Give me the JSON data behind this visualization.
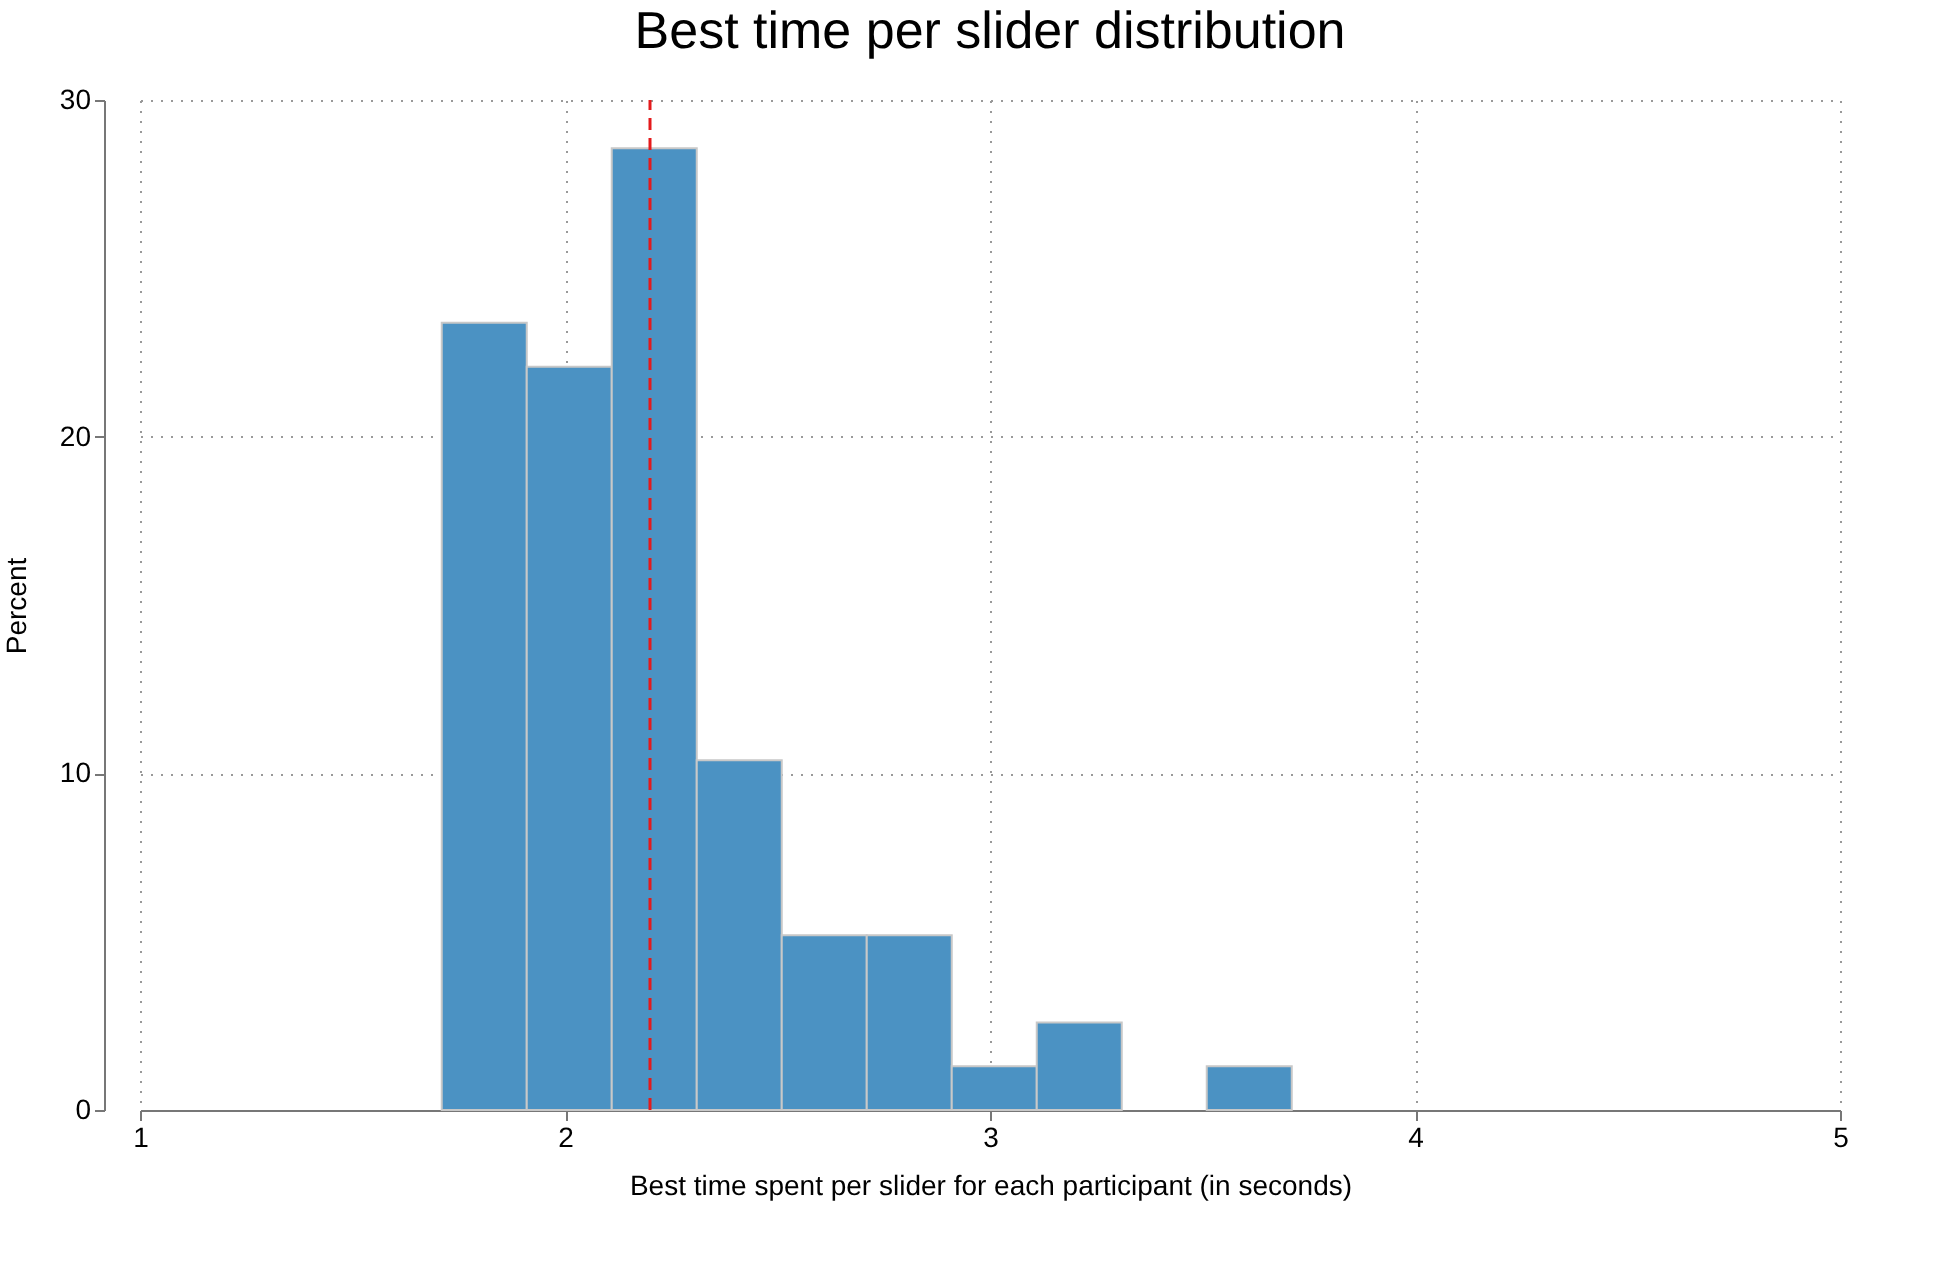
{
  "chart_data": {
    "type": "histogram",
    "title": "Best time per slider distribution",
    "xlabel": "Best time spent per slider for each participant (in seconds)",
    "ylabel": "Percent",
    "bins": [
      1.71,
      1.91,
      2.11,
      2.31,
      2.51,
      2.71,
      2.91,
      3.11,
      3.31,
      3.51,
      3.71
    ],
    "values": [
      23.38,
      22.08,
      28.57,
      10.39,
      5.19,
      5.19,
      1.3,
      2.6,
      0,
      1.3
    ],
    "color": "#4b92c3",
    "xlim": [
      1,
      5
    ],
    "xticks": [
      1,
      2,
      3,
      4,
      5
    ],
    "ylim": [
      0,
      30
    ],
    "yticks": [
      0,
      10,
      20,
      30
    ],
    "grid": true,
    "ref_lines": [
      {
        "axis": "x",
        "value": 2.2,
        "color": "#e41a1c",
        "line_style": "dashed"
      }
    ]
  }
}
